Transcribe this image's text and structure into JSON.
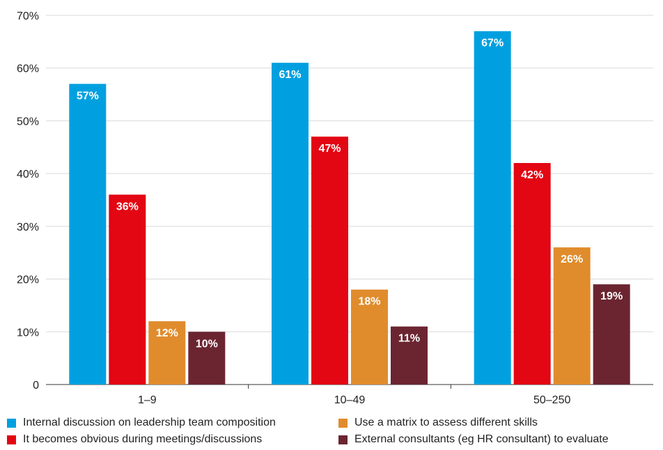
{
  "chart_data": {
    "type": "bar",
    "title": "",
    "xlabel": "",
    "ylabel": "",
    "categories": [
      "1–9",
      "10–49",
      "50–250"
    ],
    "ylim": [
      0,
      70
    ],
    "yticks": [
      0,
      10,
      20,
      30,
      40,
      50,
      60,
      70
    ],
    "ytick_labels": [
      "0",
      "10%",
      "20%",
      "30%",
      "40%",
      "50%",
      "60%",
      "70%"
    ],
    "grid": true,
    "legend_position": "bottom",
    "series": [
      {
        "name": "Internal discussion on leadership team composition",
        "color": "#00a0e0",
        "values": [
          57,
          61,
          67
        ],
        "labels": [
          "57%",
          "61%",
          "67%"
        ]
      },
      {
        "name": "It becomes obvious during meetings/discussions",
        "color": "#e30613",
        "values": [
          36,
          47,
          42
        ],
        "labels": [
          "36%",
          "47%",
          "42%"
        ]
      },
      {
        "name": "Use a matrix to assess different skills",
        "color": "#e08c2d",
        "values": [
          12,
          18,
          26
        ],
        "labels": [
          "12%",
          "18%",
          "26%"
        ]
      },
      {
        "name": "External consultants (eg HR consultant) to evaluate",
        "color": "#6b2531",
        "values": [
          10,
          11,
          19
        ],
        "labels": [
          "10%",
          "11%",
          "19%"
        ]
      }
    ]
  }
}
